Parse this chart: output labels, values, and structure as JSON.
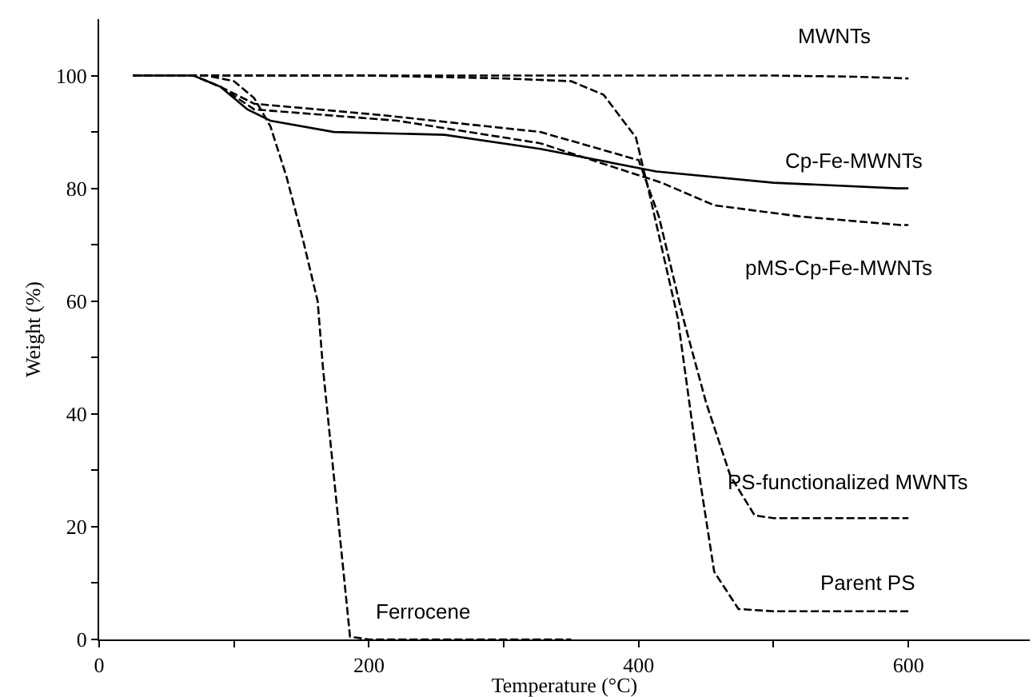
{
  "chart_data": {
    "type": "line",
    "xlabel": "Temperature (°C)",
    "ylabel": "Weight (%)",
    "xlim": [
      0,
      690
    ],
    "ylim": [
      0,
      110
    ],
    "xticks": [
      0,
      {
        "value": 100,
        "label": null
      },
      200,
      {
        "value": 300,
        "label": null
      },
      400,
      {
        "value": 500,
        "label": null
      },
      600
    ],
    "yticks": [
      0,
      {
        "value": 10,
        "label": null
      },
      20,
      {
        "value": 30,
        "label": null
      },
      40,
      {
        "value": 50,
        "label": null
      },
      60,
      {
        "value": 70,
        "label": null
      },
      80,
      {
        "value": 90,
        "label": null
      },
      100
    ],
    "grid": false,
    "legend": false,
    "marker": "none",
    "series": [
      {
        "name": "MWNTs",
        "color": "#000000",
        "line_style": "dashed",
        "x": [
          25,
          100,
          200,
          300,
          400,
          500,
          560,
          600
        ],
        "values": [
          100,
          100,
          100,
          100,
          100,
          100,
          99.8,
          99.5
        ]
      },
      {
        "name": "Cp-Fe-MWNTs",
        "color": "#000000",
        "line_style": "solid",
        "x": [
          25,
          70,
          90,
          110,
          127,
          174,
          256,
          327,
          413,
          500,
          592,
          600
        ],
        "values": [
          100,
          100,
          98,
          94,
          92,
          90,
          89.5,
          87,
          83,
          81,
          80,
          80
        ]
      },
      {
        "name": "pMS-Cp-Fe-MWNTs",
        "color": "#000000",
        "line_style": "dashed",
        "x": [
          25,
          70,
          90,
          115,
          221,
          327,
          417,
          456,
          520,
          594,
          600
        ],
        "values": [
          100,
          100,
          98,
          94,
          92,
          88,
          81,
          77,
          75,
          73.5,
          73.5
        ]
      },
      {
        "name": "PS-functionalized MWNTs",
        "color": "#000000",
        "line_style": "dashed",
        "x": [
          25,
          70,
          90,
          115,
          209,
          327,
          400,
          415,
          433,
          450,
          468,
          486,
          500,
          600
        ],
        "values": [
          100,
          100,
          98,
          95,
          93,
          90,
          85,
          75,
          57,
          42,
          29,
          22,
          21.5,
          21.5
        ]
      },
      {
        "name": "Parent PS",
        "color": "#000000",
        "line_style": "dashed",
        "x": [
          25,
          200,
          300,
          350,
          374,
          398,
          409,
          429,
          445,
          456,
          474,
          500,
          600
        ],
        "values": [
          100,
          100,
          99.5,
          99,
          96.6,
          89,
          78,
          57,
          29,
          12,
          5.4,
          5,
          5
        ]
      },
      {
        "name": "Ferrocene",
        "color": "#000000",
        "line_style": "dashed",
        "x": [
          25,
          80,
          100,
          115,
          127,
          139,
          151,
          162,
          166,
          174,
          182,
          186,
          200,
          350
        ],
        "values": [
          100,
          100,
          99,
          96,
          91,
          82,
          71,
          60,
          48,
          29,
          10,
          0.5,
          0,
          0
        ]
      }
    ]
  }
}
